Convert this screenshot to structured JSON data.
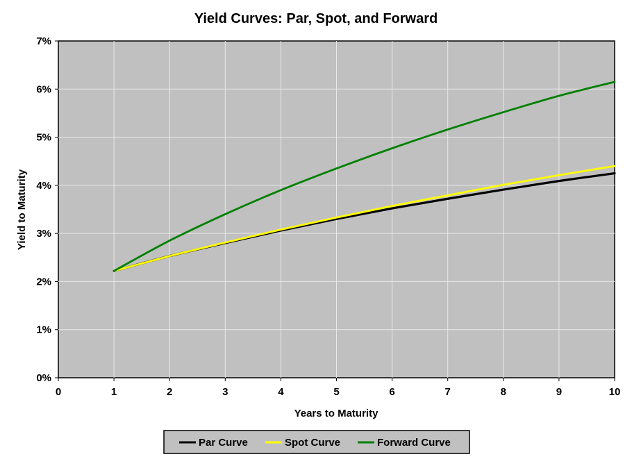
{
  "chart_data": {
    "type": "line",
    "title": "Yield Curves: Par, Spot, and Forward",
    "xlabel": "Years to Maturity",
    "ylabel": "Yield to Maturity",
    "xlim": [
      0,
      10
    ],
    "ylim": [
      0,
      7
    ],
    "x_ticks": [
      "0",
      "1",
      "2",
      "3",
      "4",
      "5",
      "6",
      "7",
      "8",
      "9",
      "10"
    ],
    "y_ticks": [
      "0%",
      "1%",
      "2%",
      "3%",
      "4%",
      "5%",
      "6%",
      "7%"
    ],
    "grid": true,
    "legend_position": "bottom",
    "x": [
      1,
      2,
      3,
      4,
      5,
      6,
      7,
      8,
      9,
      10
    ],
    "series": [
      {
        "name": "Par Curve",
        "color": "#000000",
        "values": [
          2.22,
          2.53,
          2.8,
          3.06,
          3.3,
          3.52,
          3.72,
          3.91,
          4.09,
          4.25
        ]
      },
      {
        "name": "Spot Curve",
        "color": "#ffff00",
        "values": [
          2.22,
          2.53,
          2.81,
          3.08,
          3.33,
          3.57,
          3.79,
          4.01,
          4.21,
          4.4
        ]
      },
      {
        "name": "Forward Curve",
        "color": "#008000",
        "values": [
          2.22,
          2.85,
          3.4,
          3.9,
          4.35,
          4.77,
          5.16,
          5.52,
          5.86,
          6.15
        ]
      }
    ]
  }
}
